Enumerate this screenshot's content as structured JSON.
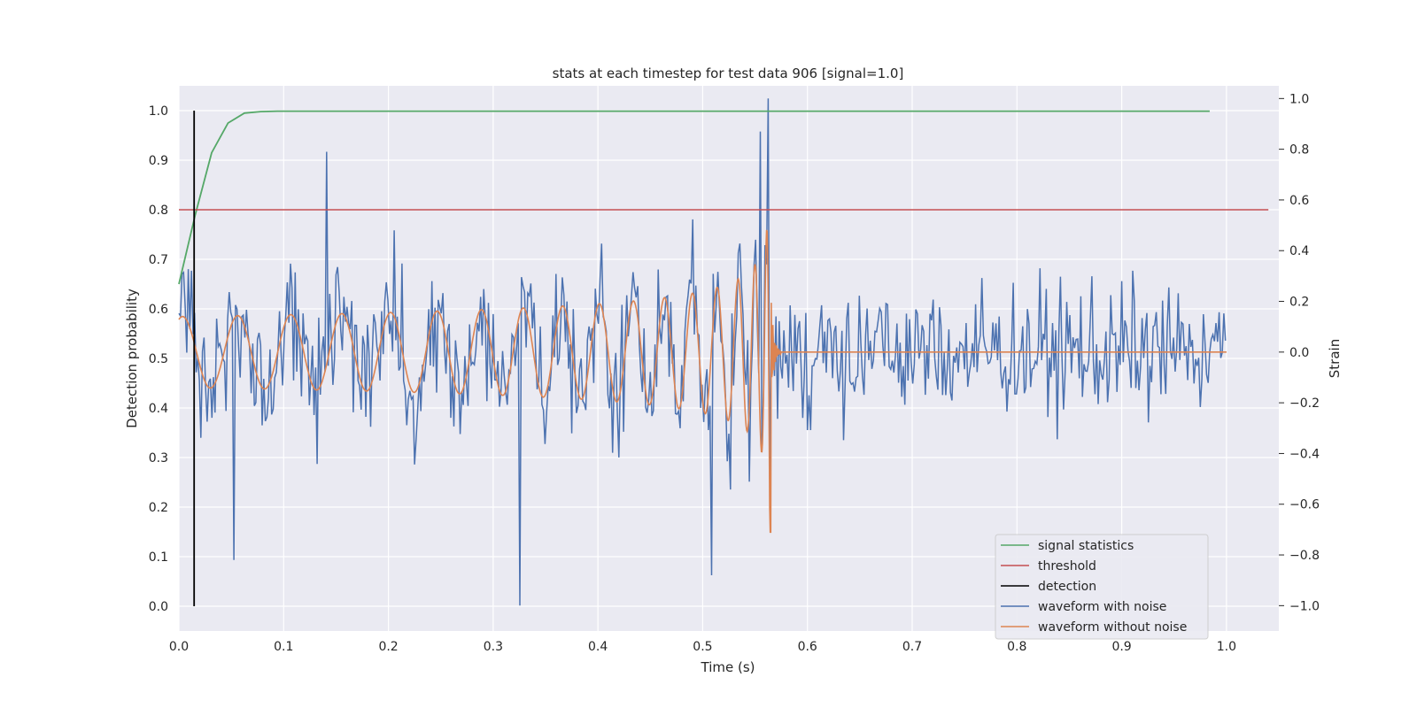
{
  "chart_data": {
    "type": "line",
    "title": "stats at each timestep for test data 906 [signal=1.0]",
    "xlabel": "Time (s)",
    "ylabel_left": "Detection probability",
    "ylabel_right": "Strain",
    "xlim": [
      0.0,
      1.05
    ],
    "ylim_left": [
      -0.05,
      1.05
    ],
    "ylim_right": [
      -1.1,
      1.05
    ],
    "x_ticks": [
      "0.0",
      "0.1",
      "0.2",
      "0.3",
      "0.4",
      "0.5",
      "0.6",
      "0.7",
      "0.8",
      "0.9",
      "1.0"
    ],
    "y_left_ticks": [
      "0.0",
      "0.1",
      "0.2",
      "0.3",
      "0.4",
      "0.5",
      "0.6",
      "0.7",
      "0.8",
      "0.9",
      "1.0"
    ],
    "y_right_ticks": [
      "−1.0",
      "−0.8",
      "−0.6",
      "−0.4",
      "−0.2",
      "0.0",
      "0.2",
      "0.4",
      "0.6",
      "0.8",
      "1.0"
    ],
    "grid": true,
    "legend_position": "bottom-right",
    "colors": {
      "signal_statistics": "#55a868",
      "threshold": "#c44e52",
      "detection": "#000000",
      "waveform_with_noise": "#4c72b0",
      "waveform_without_noise": "#dd8452",
      "plot_background": "#eaeaf2",
      "grid": "#ffffff"
    },
    "series": [
      {
        "name": "signal statistics",
        "axis": "left",
        "x": [
          0.0,
          0.0156,
          0.0313,
          0.0469,
          0.0625,
          0.0781,
          0.0938,
          0.1094,
          0.2,
          0.4,
          0.6,
          0.8,
          0.984
        ],
        "y": [
          0.65,
          0.79,
          0.915,
          0.975,
          0.995,
          0.998,
          0.999,
          0.999,
          0.999,
          0.999,
          0.999,
          0.999,
          0.999
        ]
      },
      {
        "name": "threshold",
        "axis": "left",
        "x": [
          0.0,
          1.04
        ],
        "y": [
          0.8,
          0.8
        ]
      },
      {
        "name": "detection",
        "axis": "left",
        "x": [
          0.0145,
          0.0145
        ],
        "y": [
          0.0,
          1.0
        ]
      },
      {
        "name": "waveform with noise",
        "axis": "right",
        "description": "noisy strain, ~0.001 s sampling, peaks: +1.0 at 0.563 s, -1.0 at 0.325 s",
        "x_range": [
          0.0,
          1.0
        ],
        "noise_std": 0.22,
        "peaks": [
          {
            "x": 0.563,
            "y": 1.0
          },
          {
            "x": 0.555,
            "y": 0.87
          },
          {
            "x": 0.141,
            "y": 0.79
          },
          {
            "x": 0.325,
            "y": -1.0
          },
          {
            "x": 0.509,
            "y": -0.88
          },
          {
            "x": 0.052,
            "y": -0.82
          }
        ]
      },
      {
        "name": "waveform without noise",
        "axis": "right",
        "description": "chirp signal ending at ~0.565 s, zero afterwards",
        "x_range": [
          0.0,
          1.0
        ],
        "chirp_end": 0.565,
        "peaks": [
          {
            "x": 0.553,
            "y": 0.72
          },
          {
            "x": 0.553,
            "y": -0.75
          }
        ]
      }
    ]
  }
}
